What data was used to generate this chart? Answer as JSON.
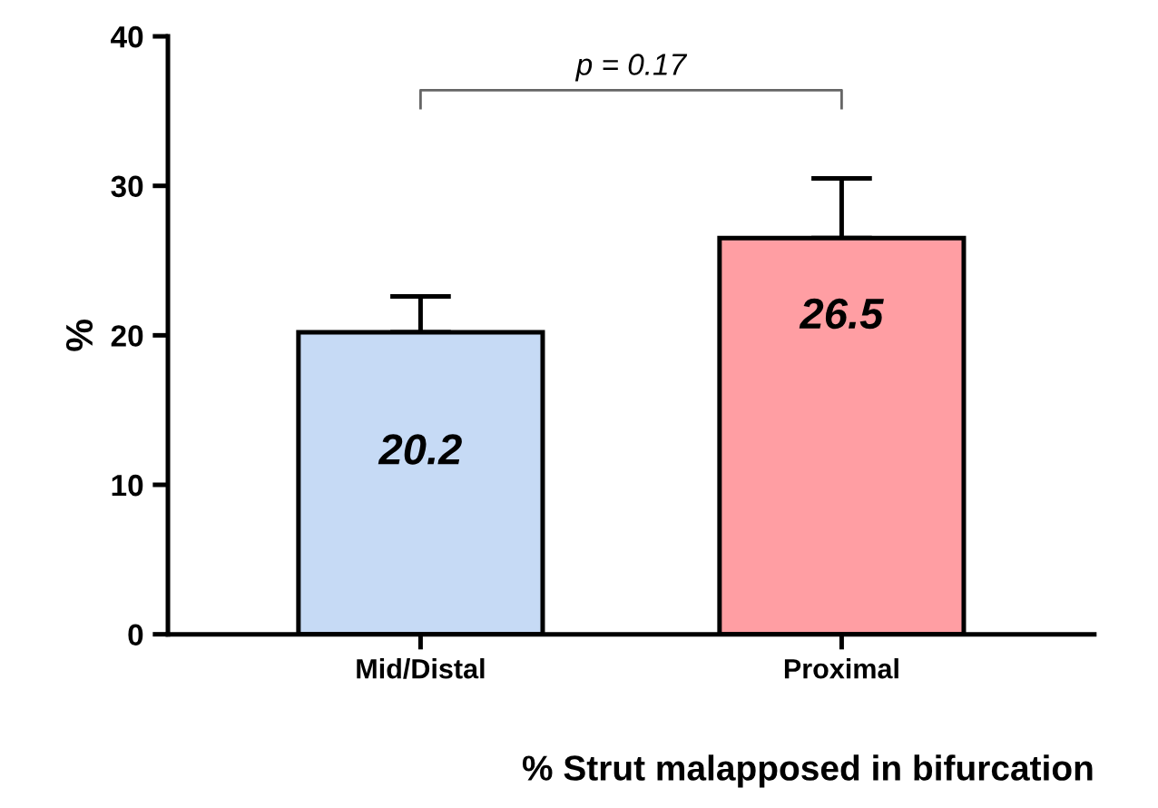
{
  "chart_data": {
    "type": "bar",
    "ylabel": "%",
    "xlabel": "% Strut malapposed in bifurcation",
    "categories": [
      "Mid/Distal",
      "Proximal"
    ],
    "values": [
      20.2,
      26.5
    ],
    "colors": [
      "#c6daf5",
      "#ff9ea3"
    ],
    "errors": [
      [
        20.2,
        22.6
      ],
      [
        26.5,
        30.5
      ]
    ],
    "ylim": [
      0,
      40
    ],
    "yticks": [
      0,
      10,
      20,
      30,
      40
    ],
    "data_labels": true,
    "grid": false,
    "legend": false,
    "annotations": [
      "p = 0.17"
    ]
  }
}
